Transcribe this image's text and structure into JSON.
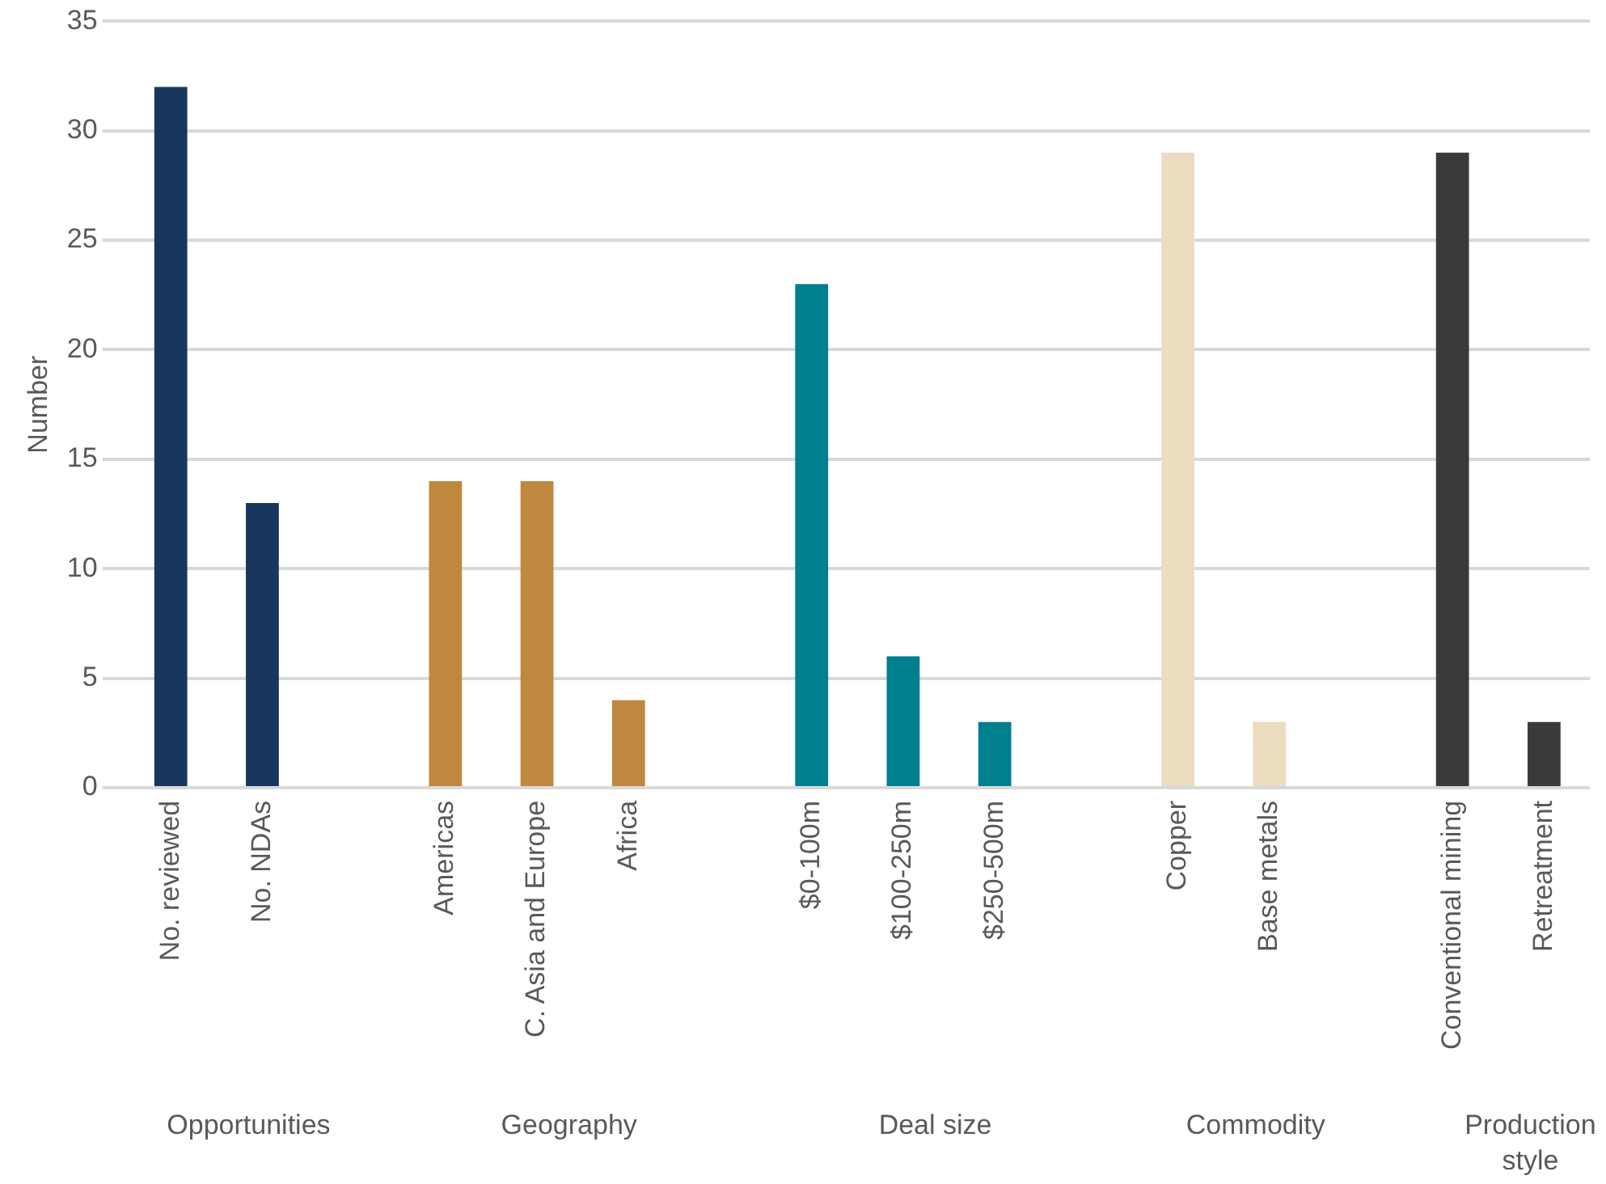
{
  "chart_data": {
    "type": "bar",
    "ylabel": "Number",
    "categories": [
      "No. reviewed",
      "No. NDAs",
      null,
      "Americas",
      "C. Asia and Europe",
      "Africa",
      null,
      "$0-100m",
      "$100-250m",
      "$250-500m",
      null,
      "Copper",
      "Base metals",
      null,
      "Conventional mining",
      "Retreatment"
    ],
    "values": [
      32,
      13,
      null,
      14,
      14,
      4,
      null,
      23,
      6,
      3,
      null,
      29,
      3,
      null,
      29,
      3
    ],
    "colors": [
      "#17375e",
      "#17375e",
      "#ffffff",
      "#c0873f",
      "#c0873f",
      "#c0873f",
      "#ffffff",
      "#007f8f",
      "#007f8f",
      "#007f8f",
      "#ffffff",
      "#ecdcc0",
      "#ecdcc0",
      "#ffffff",
      "#3a3a3a",
      "#3a3a3a"
    ],
    "ylim": [
      0,
      35
    ],
    "yticks": [
      0,
      5,
      10,
      15,
      20,
      25,
      30,
      35
    ],
    "grid": "y",
    "legend": false,
    "annotations": [
      "Opportunities",
      "Geography",
      "Deal size",
      "Commodity",
      "Production style"
    ]
  }
}
